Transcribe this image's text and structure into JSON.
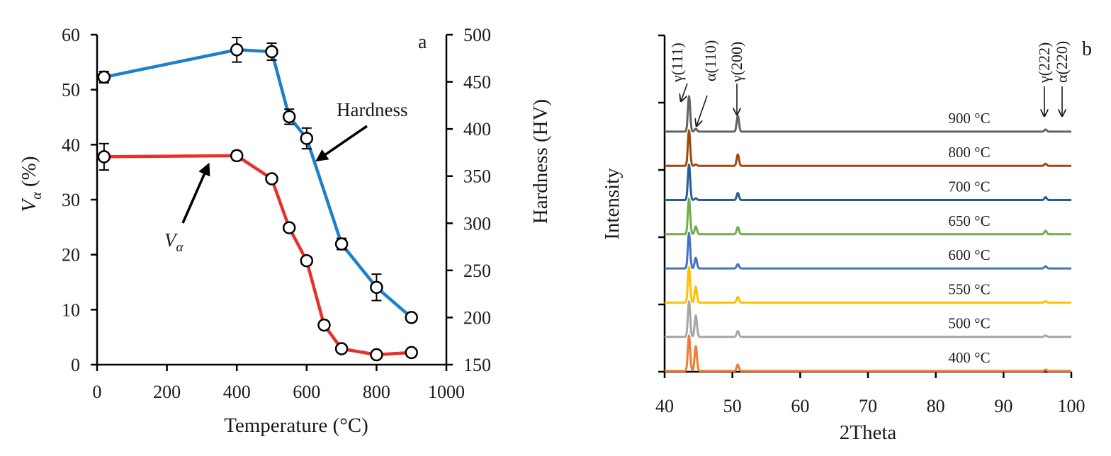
{
  "chart_data": [
    {
      "type": "line",
      "panel": "a",
      "xlabel": "Temperature (°C)",
      "ylabel_left": "V",
      "ylabel_left_sub": "α",
      "ylabel_left_unit": " (%)",
      "ylabel_right": "Hardness (HV)",
      "xlim": [
        0,
        1000
      ],
      "ylim_left": [
        0,
        60
      ],
      "ylim_right": [
        150,
        500
      ],
      "x_ticks": [
        "0",
        "200",
        "400",
        "600",
        "800",
        "1000"
      ],
      "y_left_ticks": [
        "0",
        "10",
        "20",
        "30",
        "40",
        "50",
        "60"
      ],
      "y_right_ticks": [
        "150",
        "200",
        "250",
        "300",
        "350",
        "400",
        "450",
        "500"
      ],
      "series": [
        {
          "name": "Hardness",
          "axis": "right",
          "color": "#1f7fc8",
          "x": [
            20,
            400,
            500,
            550,
            600,
            700,
            800,
            900
          ],
          "y": [
            455,
            484,
            482,
            413,
            390,
            278,
            232,
            200
          ],
          "err": [
            6,
            13,
            9,
            8,
            11,
            6,
            14,
            4
          ]
        },
        {
          "name": "Vα",
          "axis": "left",
          "color": "#e8312a",
          "x": [
            20,
            400,
            500,
            550,
            600,
            650,
            700,
            800,
            900
          ],
          "y": [
            37.8,
            38,
            33.8,
            24.9,
            18.9,
            7.2,
            2.9,
            1.8,
            2.2
          ],
          "err": [
            2.4,
            0.8,
            0,
            0,
            0,
            0,
            0,
            0,
            0
          ]
        }
      ],
      "annotations": [
        {
          "text": "Hardness",
          "series": "Hardness"
        },
        {
          "text": "V",
          "sub": "α",
          "series": "Vα"
        }
      ]
    },
    {
      "type": "line",
      "panel": "b",
      "xlabel": "2Theta",
      "ylabel": "Intensity",
      "xlim": [
        40,
        100
      ],
      "x_ticks": [
        "40",
        "50",
        "60",
        "70",
        "80",
        "90",
        "100"
      ],
      "peak_labels": [
        {
          "text": "γ(111)",
          "x": 43.6
        },
        {
          "text": "α(110)",
          "x": 44.7
        },
        {
          "text": "γ(200)",
          "x": 50.8
        },
        {
          "text": "γ(222)",
          "x": 96.2
        },
        {
          "text": "α(220)",
          "x": 98.8
        }
      ],
      "series": [
        {
          "name": "400 °C",
          "color": "#ed7d31",
          "peaks": [
            [
              43.6,
              1.0
            ],
            [
              44.6,
              0.7
            ],
            [
              50.8,
              0.18
            ],
            [
              96.2,
              0.04
            ]
          ]
        },
        {
          "name": "500 °C",
          "color": "#a5a5a5",
          "peaks": [
            [
              43.6,
              1.0
            ],
            [
              44.6,
              0.6
            ],
            [
              50.8,
              0.16
            ],
            [
              96.2,
              0.04
            ]
          ]
        },
        {
          "name": "550 °C",
          "color": "#ffc000",
          "peaks": [
            [
              43.6,
              1.0
            ],
            [
              44.6,
              0.45
            ],
            [
              50.8,
              0.16
            ],
            [
              96.2,
              0.04
            ]
          ]
        },
        {
          "name": "600 °C",
          "color": "#4472c4",
          "peaks": [
            [
              43.6,
              1.0
            ],
            [
              44.6,
              0.3
            ],
            [
              50.8,
              0.12
            ],
            [
              96.2,
              0.06
            ]
          ]
        },
        {
          "name": "650 °C",
          "color": "#70ad47",
          "peaks": [
            [
              43.6,
              1.0
            ],
            [
              44.6,
              0.22
            ],
            [
              50.8,
              0.2
            ],
            [
              96.2,
              0.1
            ]
          ]
        },
        {
          "name": "700 °C",
          "color": "#255e91",
          "peaks": [
            [
              43.6,
              1.0
            ],
            [
              44.6,
              0.05
            ],
            [
              50.8,
              0.2
            ],
            [
              96.2,
              0.08
            ]
          ]
        },
        {
          "name": "800 °C",
          "color": "#9e480e",
          "peaks": [
            [
              43.6,
              1.0
            ],
            [
              44.6,
              0.04
            ],
            [
              50.8,
              0.32
            ],
            [
              96.2,
              0.06
            ]
          ]
        },
        {
          "name": "900 °C",
          "color": "#636363",
          "peaks": [
            [
              43.6,
              1.0
            ],
            [
              44.6,
              0.08
            ],
            [
              50.8,
              0.45
            ],
            [
              96.2,
              0.06
            ]
          ]
        }
      ]
    }
  ]
}
